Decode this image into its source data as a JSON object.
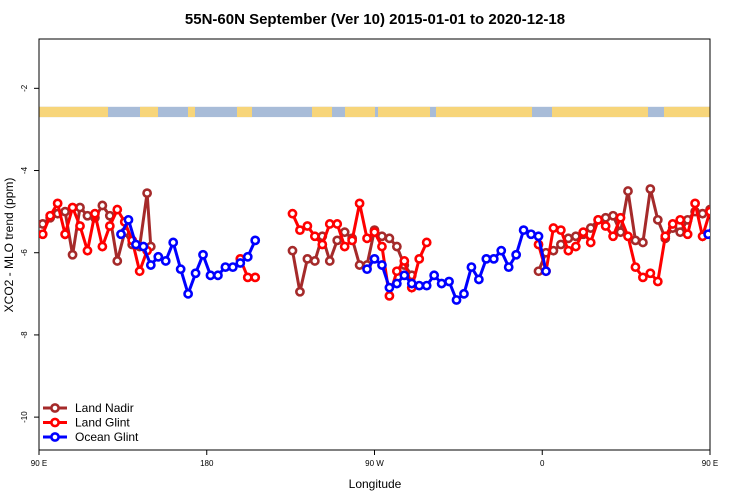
{
  "chart_data": {
    "type": "line",
    "title": "55N-60N September (Ver 10)   2015-01-01 to 2020-12-18",
    "xlabel": "Longitude",
    "ylabel": "XCO2 - MLO trend (ppm)",
    "xlim": [
      90,
      450
    ],
    "ylim": [
      -10.8,
      -0.8
    ],
    "x_ticks": [
      {
        "value": 90,
        "label": "90 E"
      },
      {
        "value": 180,
        "label": "180"
      },
      {
        "value": 270,
        "label": "90 W"
      },
      {
        "value": 360,
        "label": "0"
      },
      {
        "value": 450,
        "label": "90 E"
      },
      {
        "value": 540,
        "label": "180"
      }
    ],
    "y_ticks": [
      -10,
      -8,
      -6,
      -4,
      -2
    ],
    "grid": false,
    "legend_position": "bottom-left",
    "land_band": {
      "y_range": [
        -2.7,
        -2.45
      ],
      "ocean_color": "#a8bcd8",
      "land_color": "#f7d57a"
    },
    "series": [
      {
        "name": "Land Nadir",
        "color": "#a52a2a",
        "points": [
          [
            92,
            -5.3
          ],
          [
            96,
            -5.15
          ],
          [
            100,
            -5.05
          ],
          [
            104,
            -5.0
          ],
          [
            108,
            -6.05
          ],
          [
            112,
            -4.9
          ],
          [
            116,
            -5.1
          ],
          [
            120,
            -5.15
          ],
          [
            124,
            -4.85
          ],
          [
            128,
            -5.1
          ],
          [
            132,
            -6.2
          ],
          [
            136,
            -5.5
          ],
          [
            140,
            -5.8
          ],
          [
            144,
            -5.85
          ],
          [
            148,
            -4.55
          ],
          [
            150,
            -5.85
          ],
          [
            226,
            -5.95
          ],
          [
            230,
            -6.95
          ],
          [
            234,
            -6.15
          ],
          [
            238,
            -6.2
          ],
          [
            242,
            -5.6
          ],
          [
            246,
            -6.2
          ],
          [
            250,
            -5.7
          ],
          [
            254,
            -5.5
          ],
          [
            258,
            -5.65
          ],
          [
            262,
            -6.3
          ],
          [
            266,
            -6.3
          ],
          [
            270,
            -5.45
          ],
          [
            274,
            -5.6
          ],
          [
            278,
            -5.65
          ],
          [
            282,
            -5.85
          ],
          [
            286,
            -6.3
          ],
          [
            290,
            -6.55
          ],
          [
            358,
            -6.45
          ],
          [
            362,
            -6.0
          ],
          [
            366,
            -5.95
          ],
          [
            370,
            -5.8
          ],
          [
            374,
            -5.65
          ],
          [
            378,
            -5.6
          ],
          [
            382,
            -5.55
          ],
          [
            386,
            -5.4
          ],
          [
            390,
            -5.2
          ],
          [
            394,
            -5.15
          ],
          [
            398,
            -5.1
          ],
          [
            402,
            -5.5
          ],
          [
            406,
            -4.5
          ],
          [
            410,
            -5.7
          ],
          [
            414,
            -5.75
          ],
          [
            418,
            -4.45
          ],
          [
            422,
            -5.2
          ],
          [
            426,
            -5.65
          ],
          [
            430,
            -5.4
          ],
          [
            434,
            -5.5
          ],
          [
            438,
            -5.2
          ],
          [
            442,
            -5.0
          ],
          [
            446,
            -5.05
          ],
          [
            450,
            -4.95
          ]
        ]
      },
      {
        "name": "Land Glint",
        "color": "#ff0000",
        "points": [
          [
            92,
            -5.55
          ],
          [
            96,
            -5.1
          ],
          [
            100,
            -4.8
          ],
          [
            104,
            -5.55
          ],
          [
            108,
            -4.9
          ],
          [
            112,
            -5.35
          ],
          [
            116,
            -5.95
          ],
          [
            120,
            -5.05
          ],
          [
            124,
            -5.85
          ],
          [
            128,
            -5.35
          ],
          [
            132,
            -4.95
          ],
          [
            136,
            -5.25
          ],
          [
            140,
            -5.7
          ],
          [
            144,
            -6.45
          ],
          [
            148,
            -5.95
          ],
          [
            198,
            -6.15
          ],
          [
            202,
            -6.6
          ],
          [
            206,
            -6.6
          ],
          [
            226,
            -5.05
          ],
          [
            230,
            -5.45
          ],
          [
            234,
            -5.35
          ],
          [
            238,
            -5.6
          ],
          [
            242,
            -5.8
          ],
          [
            246,
            -5.3
          ],
          [
            250,
            -5.3
          ],
          [
            254,
            -5.85
          ],
          [
            258,
            -5.7
          ],
          [
            262,
            -4.8
          ],
          [
            266,
            -5.65
          ],
          [
            270,
            -5.5
          ],
          [
            274,
            -5.85
          ],
          [
            278,
            -7.05
          ],
          [
            282,
            -6.45
          ],
          [
            286,
            -6.2
          ],
          [
            290,
            -6.85
          ],
          [
            294,
            -6.15
          ],
          [
            298,
            -5.75
          ],
          [
            358,
            -5.8
          ],
          [
            362,
            -6.45
          ],
          [
            366,
            -5.4
          ],
          [
            370,
            -5.45
          ],
          [
            374,
            -5.95
          ],
          [
            378,
            -5.85
          ],
          [
            382,
            -5.5
          ],
          [
            386,
            -5.75
          ],
          [
            390,
            -5.2
          ],
          [
            394,
            -5.35
          ],
          [
            398,
            -5.6
          ],
          [
            402,
            -5.15
          ],
          [
            406,
            -5.6
          ],
          [
            410,
            -6.35
          ],
          [
            414,
            -6.6
          ],
          [
            418,
            -6.5
          ],
          [
            422,
            -6.7
          ],
          [
            426,
            -5.6
          ],
          [
            430,
            -5.3
          ],
          [
            434,
            -5.2
          ],
          [
            438,
            -5.55
          ],
          [
            442,
            -4.8
          ],
          [
            446,
            -5.6
          ],
          [
            450,
            -5.0
          ]
        ]
      },
      {
        "name": "Ocean Glint",
        "color": "#0000ff",
        "points": [
          [
            134,
            -5.55
          ],
          [
            138,
            -5.2
          ],
          [
            142,
            -5.8
          ],
          [
            146,
            -5.85
          ],
          [
            150,
            -6.3
          ],
          [
            154,
            -6.1
          ],
          [
            158,
            -6.2
          ],
          [
            162,
            -5.75
          ],
          [
            166,
            -6.4
          ],
          [
            170,
            -7.0
          ],
          [
            174,
            -6.5
          ],
          [
            178,
            -6.05
          ],
          [
            182,
            -6.55
          ],
          [
            186,
            -6.55
          ],
          [
            190,
            -6.35
          ],
          [
            194,
            -6.35
          ],
          [
            198,
            -6.25
          ],
          [
            202,
            -6.1
          ],
          [
            206,
            -5.7
          ],
          [
            266,
            -6.4
          ],
          [
            270,
            -6.15
          ],
          [
            274,
            -6.3
          ],
          [
            278,
            -6.85
          ],
          [
            282,
            -6.75
          ],
          [
            286,
            -6.55
          ],
          [
            290,
            -6.75
          ],
          [
            294,
            -6.8
          ],
          [
            298,
            -6.8
          ],
          [
            302,
            -6.55
          ],
          [
            306,
            -6.75
          ],
          [
            310,
            -6.7
          ],
          [
            314,
            -7.15
          ],
          [
            318,
            -7.0
          ],
          [
            322,
            -6.35
          ],
          [
            326,
            -6.65
          ],
          [
            330,
            -6.15
          ],
          [
            334,
            -6.15
          ],
          [
            338,
            -5.95
          ],
          [
            342,
            -6.35
          ],
          [
            346,
            -6.05
          ],
          [
            350,
            -5.45
          ],
          [
            354,
            -5.55
          ],
          [
            358,
            -5.6
          ],
          [
            362,
            -6.45
          ],
          [
            449,
            -5.55
          ],
          [
            453,
            -5.2
          ],
          [
            457,
            -5.8
          ],
          [
            461,
            -5.85
          ],
          [
            465,
            -6.3
          ],
          [
            469,
            -6.1
          ],
          [
            473,
            -6.2
          ],
          [
            477,
            -5.75
          ],
          [
            481,
            -6.4
          ]
        ]
      }
    ]
  }
}
